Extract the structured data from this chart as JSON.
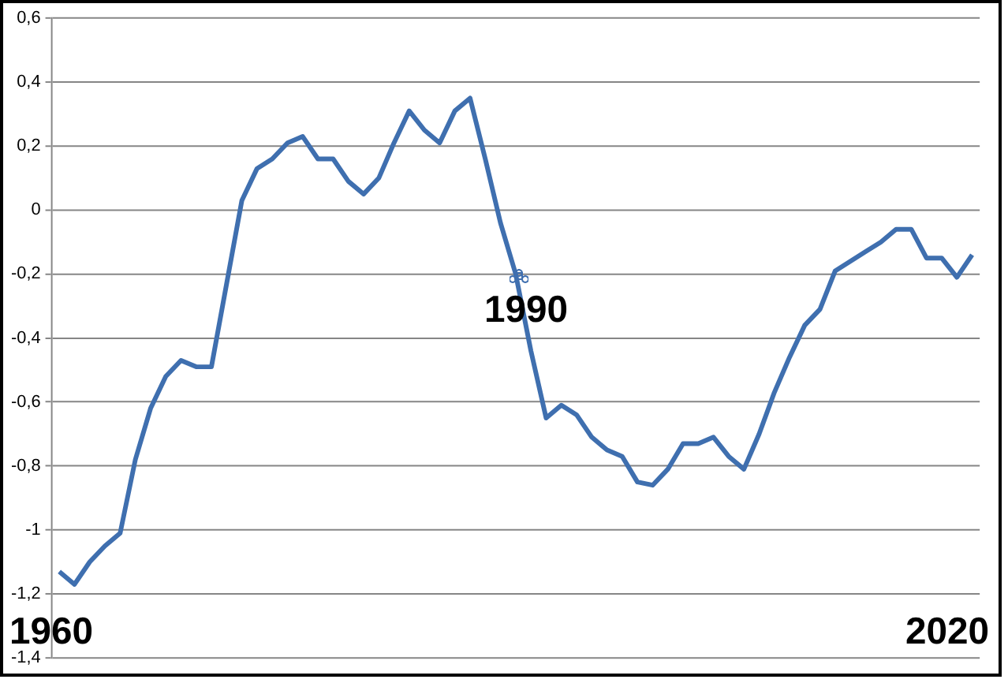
{
  "chart_data": {
    "type": "line",
    "categories": [
      null,
      null,
      null,
      null,
      null,
      null,
      null,
      null,
      null,
      null,
      null,
      null,
      null,
      null,
      null,
      null,
      null,
      null,
      null,
      null,
      null,
      null,
      null,
      null,
      null,
      null,
      null,
      null,
      null,
      null,
      null,
      null,
      null,
      null,
      null,
      null,
      null,
      null,
      null,
      null,
      null,
      null,
      null,
      null,
      null,
      null,
      null,
      null,
      null,
      null,
      null,
      null,
      null,
      null,
      null,
      null,
      null,
      null,
      null,
      null,
      null
    ],
    "series": [
      {
        "color": "#3f6faf",
        "values": [
          -1.13,
          -1.17,
          -1.1,
          -1.05,
          -1.01,
          -0.78,
          -0.62,
          -0.52,
          -0.47,
          -0.49,
          -0.49,
          -0.23,
          0.03,
          0.13,
          0.16,
          0.21,
          0.23,
          0.16,
          0.16,
          0.09,
          0.05,
          0.1,
          0.21,
          0.31,
          0.25,
          0.21,
          0.31,
          0.35,
          0.16,
          -0.04,
          -0.2,
          -0.44,
          -0.65,
          -0.61,
          -0.64,
          -0.71,
          -0.75,
          -0.77,
          -0.85,
          -0.86,
          -0.81,
          -0.73,
          -0.73,
          -0.71,
          -0.77,
          -0.81,
          -0.7,
          -0.57,
          -0.46,
          -0.36,
          -0.31,
          -0.19,
          -0.16,
          -0.13,
          -0.1,
          -0.06,
          -0.06,
          -0.15,
          -0.15,
          -0.21,
          -0.14
        ]
      }
    ],
    "ylim": [
      -1.4,
      0.6
    ],
    "yticks": [
      {
        "value": -1.4,
        "label": "-1,4"
      },
      {
        "value": -1.2,
        "label": "-1,2"
      },
      {
        "value": -1,
        "label": "-1"
      },
      {
        "value": -0.8,
        "label": "-0,8"
      },
      {
        "value": -0.6,
        "label": "-0,6"
      },
      {
        "value": -0.4,
        "label": "-0,4"
      },
      {
        "value": -0.2,
        "label": "-0,2"
      },
      {
        "value": 0,
        "label": "0"
      },
      {
        "value": 0.2,
        "label": "0,2"
      },
      {
        "value": 0.4,
        "label": "0,4"
      },
      {
        "value": 0.6,
        "label": "0,6"
      }
    ],
    "tick_labels": "y",
    "grid": "y",
    "legend": false,
    "marker": "none",
    "line_style": "solid",
    "annotations": [
      "1960",
      "1990",
      "2020"
    ]
  }
}
